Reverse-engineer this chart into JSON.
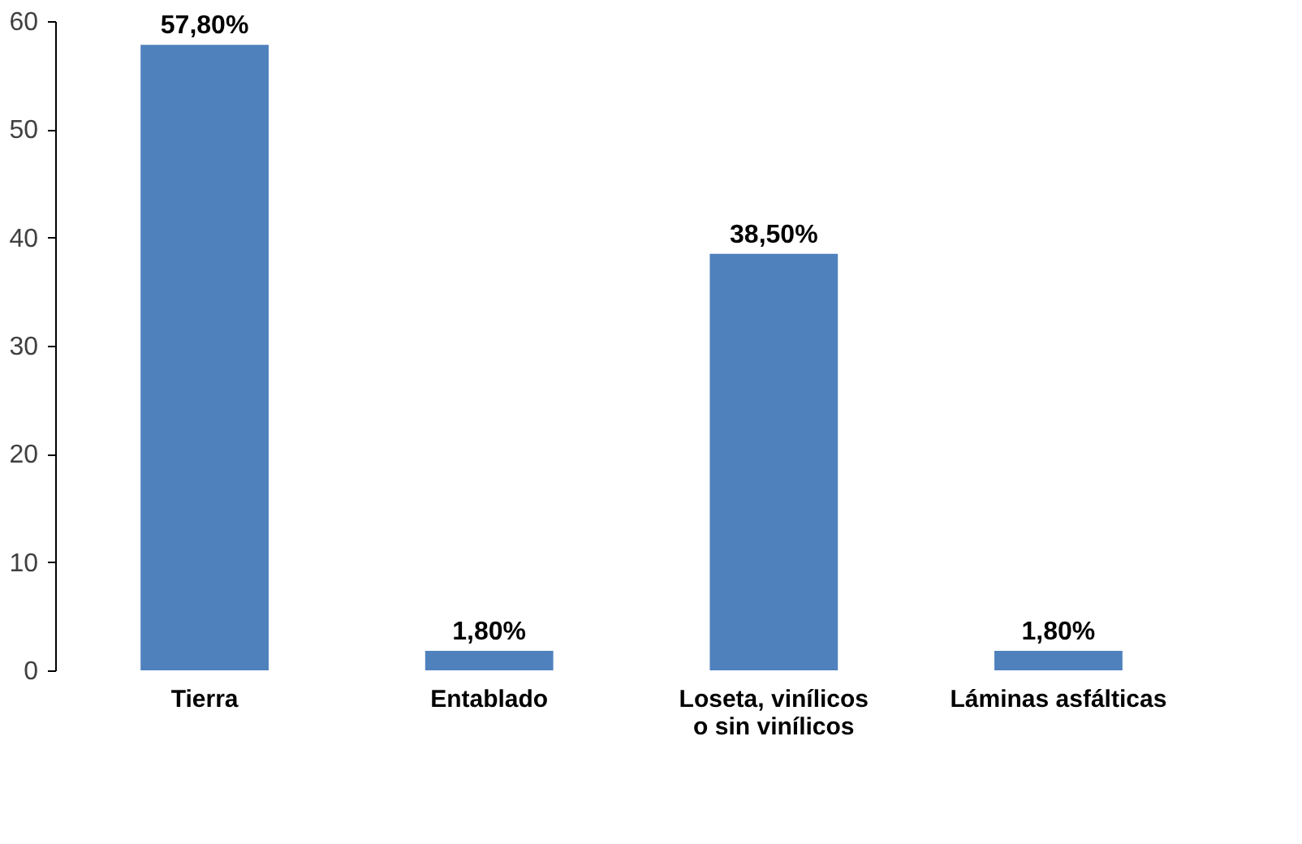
{
  "chart_data": {
    "type": "bar",
    "categories": [
      "Tierra",
      "Entablado",
      "Loseta, vinílicos o sin vinílicos",
      "Láminas asfálticas"
    ],
    "values": [
      57.8,
      1.8,
      38.5,
      1.8
    ],
    "value_labels": [
      "57,80%",
      "1,80%",
      "38,50%",
      "1,80%"
    ],
    "color": "#4f81bd",
    "ylim": [
      0,
      60
    ],
    "yticks": [
      0,
      10,
      20,
      30,
      40,
      50,
      60
    ],
    "grid": false
  }
}
